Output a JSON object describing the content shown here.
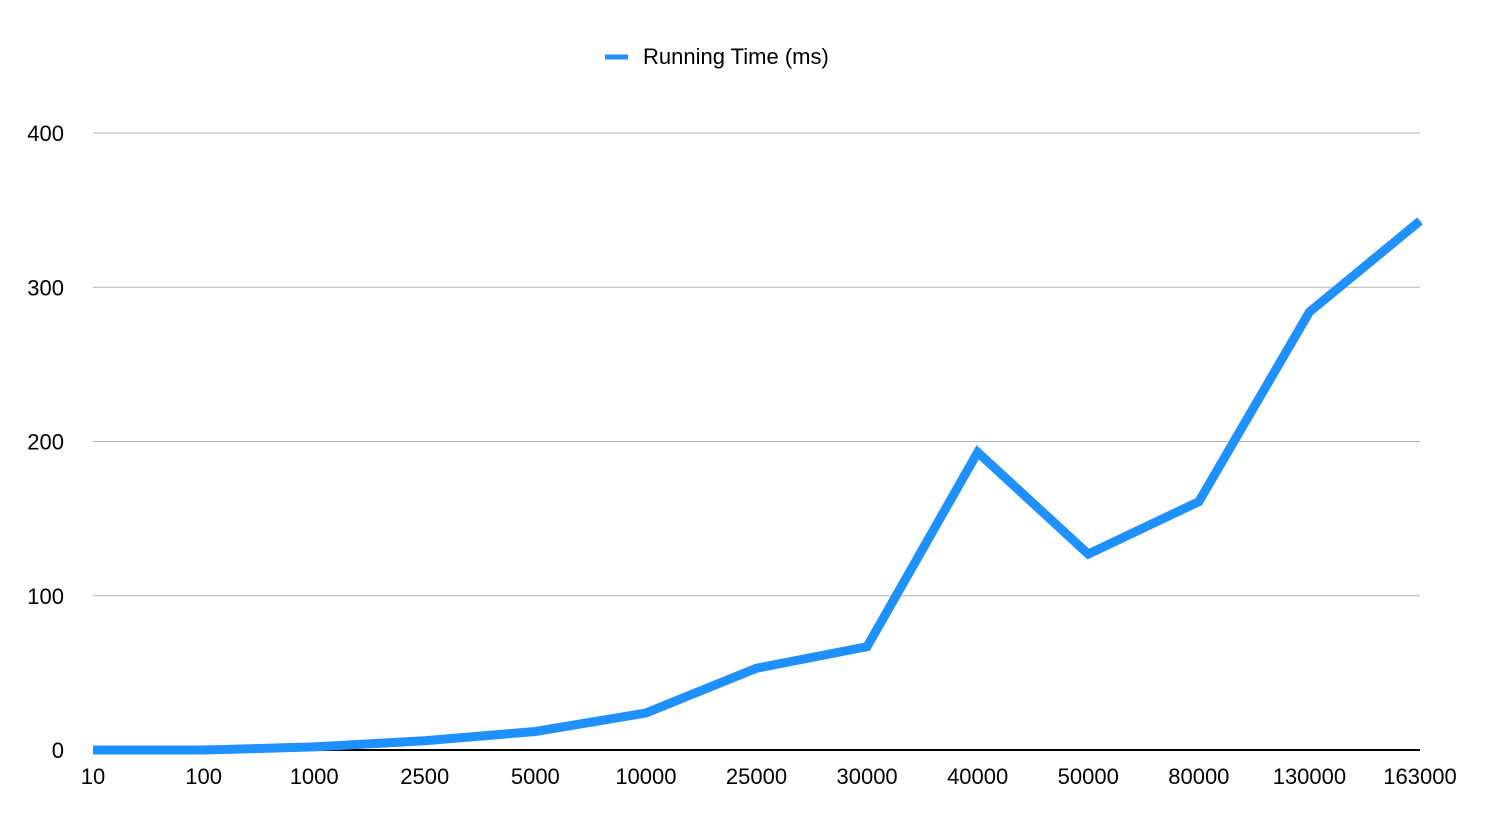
{
  "chart_data": {
    "type": "line",
    "categories": [
      "10",
      "100",
      "1000",
      "2500",
      "5000",
      "10000",
      "25000",
      "30000",
      "40000",
      "50000",
      "80000",
      "130000",
      "163000"
    ],
    "series": [
      {
        "name": "Running Time (ms)",
        "color": "#1E90FF",
        "values": [
          0,
          0,
          2,
          6,
          12,
          24,
          53,
          67,
          193,
          127,
          161,
          284,
          343
        ]
      }
    ],
    "ylim": [
      0,
      400
    ],
    "yticks": [
      0,
      100,
      200,
      300,
      400
    ],
    "grid": true,
    "legend_position": "top-center",
    "title": "",
    "xlabel": "",
    "ylabel": ""
  }
}
